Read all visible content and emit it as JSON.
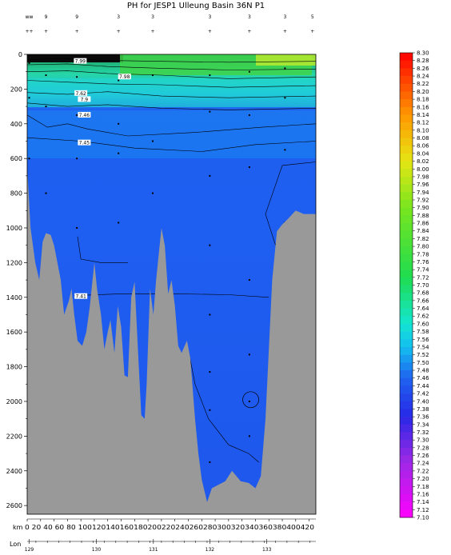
{
  "chart_data": {
    "type": "heatmap",
    "title": "PH for JESP1 Ulleung Basin 36N P1",
    "xlabel": "km",
    "x2label": "Lon",
    "ylim": [
      2650,
      0
    ],
    "xlim": [
      0,
      430
    ],
    "y_ticks": [
      0,
      200,
      400,
      600,
      800,
      1000,
      1200,
      1400,
      1600,
      1800,
      2000,
      2200,
      2400,
      2600
    ],
    "x_ticks": [
      0,
      20,
      40,
      60,
      80,
      100,
      120,
      140,
      160,
      180,
      200,
      220,
      240,
      260,
      280,
      300,
      320,
      340,
      360,
      380,
      400,
      420
    ],
    "x_tick_labels": "0  20  40  60  80 100120140160180200220240260280300320340360380400420",
    "lon_ticks": [
      {
        "label": "129",
        "km": 3
      },
      {
        "label": "130",
        "km": 103
      },
      {
        "label": "131",
        "km": 188
      },
      {
        "label": "132",
        "km": 272
      },
      {
        "label": "133",
        "km": 357
      }
    ],
    "stations": [
      {
        "label": "ww",
        "km": 3
      },
      {
        "label": "9",
        "km": 28
      },
      {
        "label": "9",
        "km": 74
      },
      {
        "label": "3",
        "km": 136
      },
      {
        "label": "3",
        "km": 187
      },
      {
        "label": "3",
        "km": 272
      },
      {
        "label": "3",
        "km": 331
      },
      {
        "label": "3",
        "km": 384
      },
      {
        "label": "5",
        "km": 425
      }
    ],
    "colorbar": {
      "min": 7.1,
      "max": 8.3,
      "step": 0.02,
      "labels": [
        "8.30",
        "8.28",
        "8.26",
        "8.24",
        "8.22",
        "8.20",
        "8.18",
        "8.16",
        "8.14",
        "8.12",
        "8.10",
        "8.08",
        "8.06",
        "8.04",
        "8.02",
        "8.00",
        "7.98",
        "7.96",
        "7.94",
        "7.92",
        "7.90",
        "7.88",
        "7.86",
        "7.84",
        "7.82",
        "7.80",
        "7.78",
        "7.76",
        "7.74",
        "7.72",
        "7.70",
        "7.68",
        "7.66",
        "7.64",
        "7.62",
        "7.60",
        "7.58",
        "7.56",
        "7.54",
        "7.52",
        "7.50",
        "7.48",
        "7.46",
        "7.44",
        "7.42",
        "7.40",
        "7.38",
        "7.36",
        "7.34",
        "7.32",
        "7.30",
        "7.28",
        "7.26",
        "7.24",
        "7.22",
        "7.20",
        "7.18",
        "7.16",
        "7.14",
        "7.12",
        "7.10"
      ]
    },
    "contour_labels": [
      {
        "text": "7.99",
        "km": 79,
        "depth": 40
      },
      {
        "text": "7.98",
        "km": 145,
        "depth": 130
      },
      {
        "text": "7.62",
        "km": 80,
        "depth": 225
      },
      {
        "text": "7.9",
        "km": 85,
        "depth": 260
      },
      {
        "text": "7.46",
        "km": 85,
        "depth": 350
      },
      {
        "text": "7.45",
        "km": 85,
        "depth": 510
      },
      {
        "text": "7.41",
        "km": 80,
        "depth": 1395
      }
    ],
    "bathymetry": [
      [
        0,
        650
      ],
      [
        5,
        1000
      ],
      [
        12,
        1200
      ],
      [
        18,
        1300
      ],
      [
        23,
        1080
      ],
      [
        28,
        1030
      ],
      [
        35,
        1040
      ],
      [
        40,
        1100
      ],
      [
        50,
        1300
      ],
      [
        55,
        1500
      ],
      [
        62,
        1420
      ],
      [
        66,
        1350
      ],
      [
        70,
        1500
      ],
      [
        75,
        1650
      ],
      [
        82,
        1680
      ],
      [
        88,
        1600
      ],
      [
        93,
        1460
      ],
      [
        100,
        1200
      ],
      [
        104,
        1350
      ],
      [
        110,
        1500
      ],
      [
        115,
        1700
      ],
      [
        120,
        1600
      ],
      [
        124,
        1530
      ],
      [
        130,
        1720
      ],
      [
        135,
        1450
      ],
      [
        140,
        1570
      ],
      [
        145,
        1850
      ],
      [
        150,
        1860
      ],
      [
        155,
        1400
      ],
      [
        160,
        1310
      ],
      [
        165,
        1700
      ],
      [
        170,
        2080
      ],
      [
        175,
        2100
      ],
      [
        178,
        1900
      ],
      [
        183,
        1350
      ],
      [
        188,
        1500
      ],
      [
        192,
        1300
      ],
      [
        200,
        1000
      ],
      [
        205,
        1100
      ],
      [
        210,
        1380
      ],
      [
        215,
        1300
      ],
      [
        220,
        1450
      ],
      [
        225,
        1680
      ],
      [
        230,
        1720
      ],
      [
        238,
        1650
      ],
      [
        243,
        1750
      ],
      [
        246,
        1900
      ],
      [
        250,
        2100
      ],
      [
        255,
        2300
      ],
      [
        260,
        2450
      ],
      [
        268,
        2580
      ],
      [
        275,
        2500
      ],
      [
        285,
        2480
      ],
      [
        295,
        2460
      ],
      [
        305,
        2400
      ],
      [
        318,
        2460
      ],
      [
        330,
        2470
      ],
      [
        340,
        2500
      ],
      [
        348,
        2430
      ],
      [
        355,
        2100
      ],
      [
        360,
        1700
      ],
      [
        365,
        1300
      ],
      [
        372,
        1020
      ],
      [
        380,
        980
      ],
      [
        388,
        950
      ],
      [
        400,
        900
      ],
      [
        412,
        920
      ],
      [
        420,
        920
      ],
      [
        430,
        920
      ]
    ]
  }
}
